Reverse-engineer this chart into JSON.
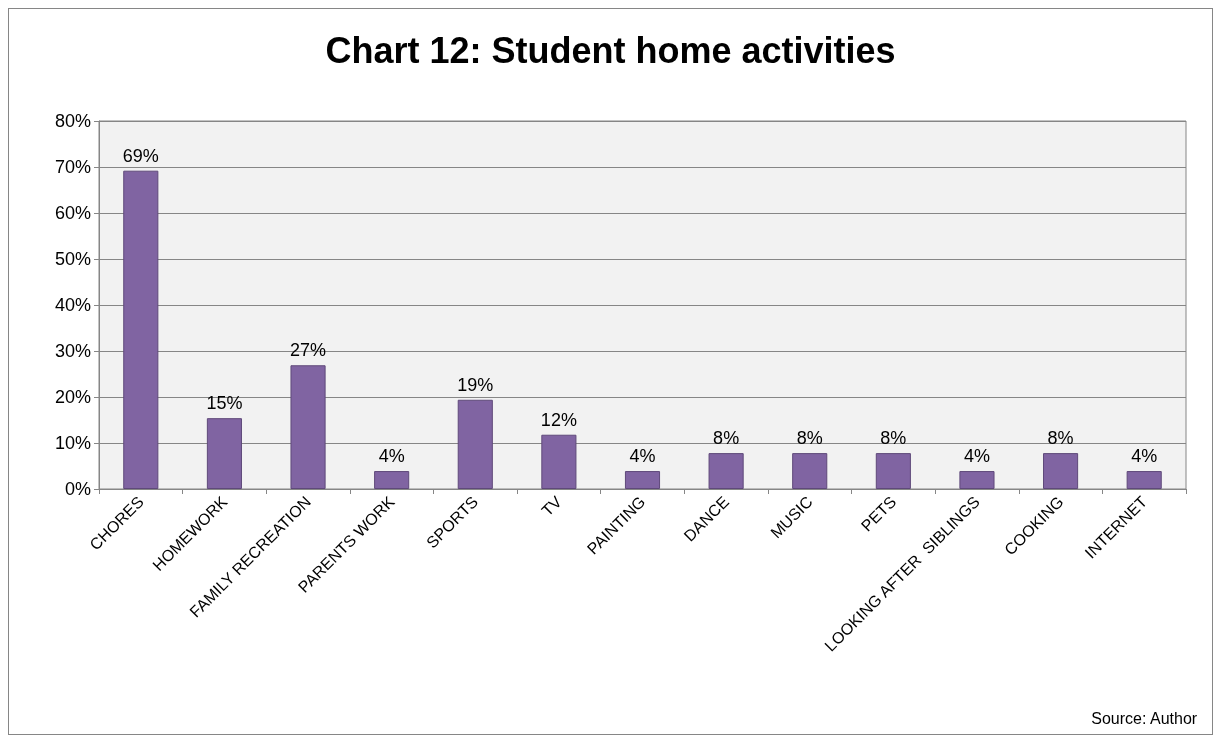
{
  "chart_data": {
    "type": "bar",
    "title": "Chart 12: Student home activities",
    "categories": [
      "CHORES",
      "HOMEWORK",
      "FAMILY RECREATION",
      "PARENTS WORK",
      "SPORTS",
      "TV",
      "PAINTING",
      "DANCE",
      "MUSIC",
      "PETS",
      "LOOKING AFTER  SIBLINGS",
      "COOKING",
      "INTERNET"
    ],
    "values": [
      69.2,
      15.4,
      26.9,
      3.9,
      19.4,
      11.8,
      3.9,
      7.8,
      7.8,
      7.8,
      3.9,
      7.8,
      3.9
    ],
    "value_labels": [
      "69%",
      "15%",
      "27%",
      "4%",
      "19%",
      "12%",
      "4%",
      "8%",
      "8%",
      "8%",
      "4%",
      "8%",
      "4%"
    ],
    "color": "#8064a2",
    "ylim": [
      0,
      80
    ],
    "yticks": [
      {
        "value": 0,
        "label": "0%"
      },
      {
        "value": 10,
        "label": "10%"
      },
      {
        "value": 20,
        "label": "20%"
      },
      {
        "value": 30,
        "label": "30%"
      },
      {
        "value": 40,
        "label": "40%"
      },
      {
        "value": 50,
        "label": "50%"
      },
      {
        "value": 60,
        "label": "60%"
      },
      {
        "value": 70,
        "label": "70%"
      },
      {
        "value": 80,
        "label": "80%"
      }
    ],
    "grid": "y",
    "annotations": [
      "Source: Author"
    ]
  }
}
